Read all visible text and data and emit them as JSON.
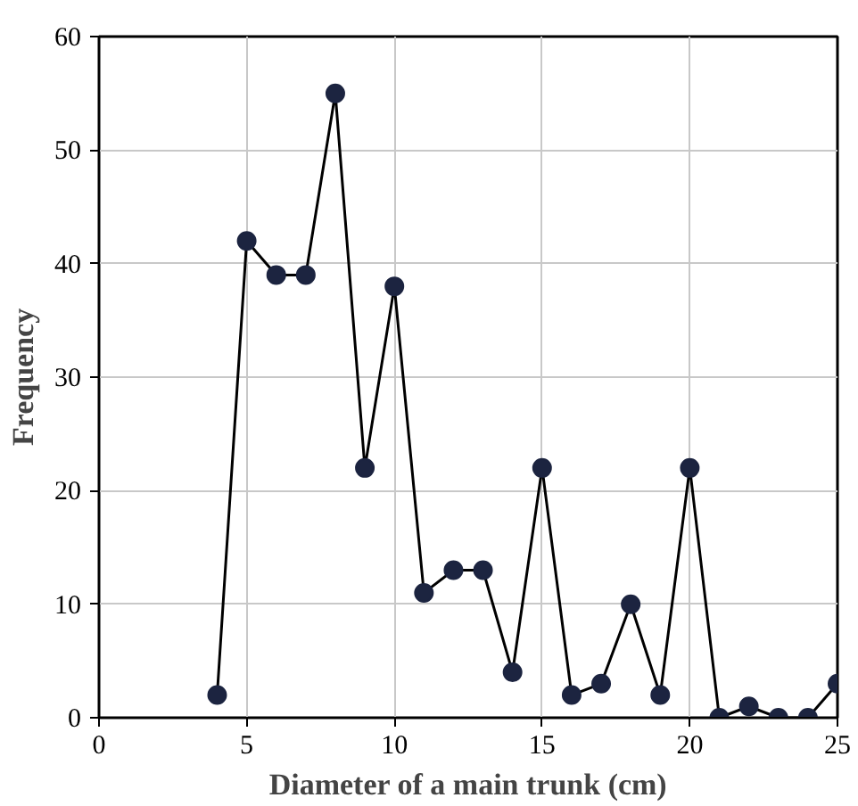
{
  "chart_data": {
    "type": "line",
    "xlabel": "Diameter of a main trunk (cm)",
    "ylabel": "Frequency",
    "x": [
      4,
      5,
      6,
      7,
      8,
      9,
      10,
      11,
      12,
      13,
      14,
      15,
      16,
      17,
      18,
      19,
      20,
      21,
      22,
      23,
      24,
      25
    ],
    "series": [
      {
        "color": "#1c2440",
        "values": [
          2,
          42,
          39,
          39,
          55,
          22,
          38,
          11,
          13,
          13,
          4,
          22,
          2,
          3,
          10,
          2,
          22,
          0,
          1,
          0,
          0,
          3
        ]
      }
    ],
    "xlim": [
      0,
      25
    ],
    "xticks": [
      0,
      5,
      10,
      15,
      20,
      25
    ],
    "ylim": [
      0,
      60
    ],
    "yticks": [
      0,
      10,
      20,
      30,
      40,
      50,
      60
    ],
    "grid": true,
    "marker": "circle",
    "line_style": "solid"
  }
}
